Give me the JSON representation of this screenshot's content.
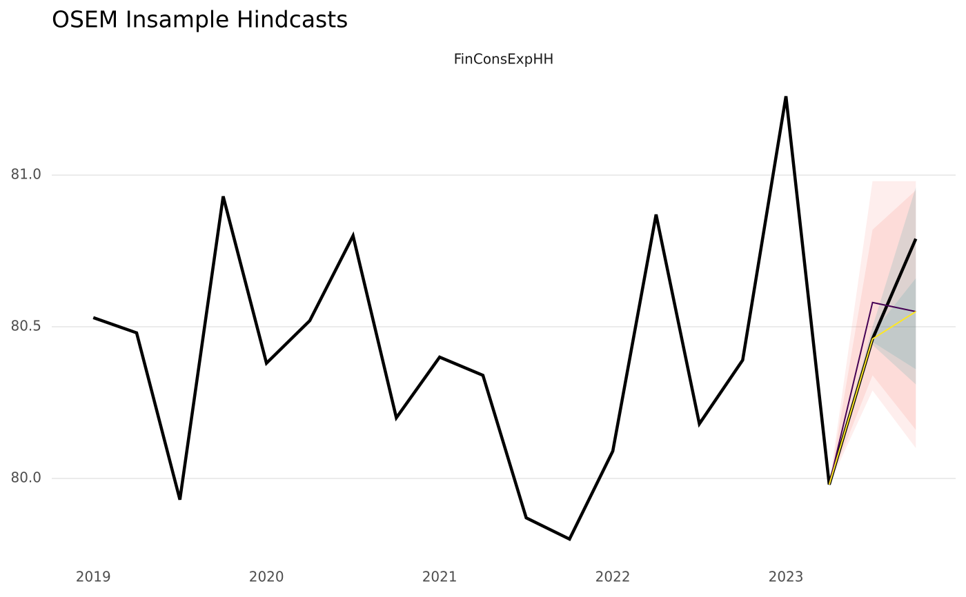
{
  "chart_data": {
    "type": "line",
    "title": "OSEM Insample Hindcasts",
    "subtitle": "FinConsExpHH",
    "x": [
      2019,
      2019.25,
      2019.5,
      2019.75,
      2020,
      2020.25,
      2020.5,
      2020.75,
      2021,
      2021.25,
      2021.5,
      2021.75,
      2022,
      2022.25,
      2022.5,
      2022.75,
      2023,
      2023.25,
      2023.5,
      2023.75
    ],
    "series": [
      {
        "color": "#000000",
        "x": [
          2019,
          2019.25,
          2019.5,
          2019.75,
          2020,
          2020.25,
          2020.5,
          2020.75,
          2021,
          2021.25,
          2021.5,
          2021.75,
          2022,
          2022.25,
          2022.5,
          2022.75,
          2023,
          2023.25,
          2023.5,
          2023.75
        ],
        "values": [
          80.53,
          80.48,
          79.93,
          80.93,
          80.38,
          80.52,
          80.8,
          80.2,
          80.4,
          80.34,
          79.87,
          79.8,
          80.09,
          80.87,
          80.18,
          80.39,
          81.26,
          79.98,
          80.46,
          80.79
        ]
      },
      {
        "color": "#440154",
        "x": [
          2023.25,
          2023.5,
          2023.75
        ],
        "values": [
          79.98,
          80.58,
          80.55
        ]
      },
      {
        "color": "#fde725",
        "x": [
          2023.25,
          2023.5,
          2023.75
        ],
        "values": [
          79.98,
          80.46,
          80.55
        ]
      }
    ],
    "bands": [
      {
        "color": "#f8766d",
        "opacity": 0.12,
        "x": [
          2023.25,
          2023.5,
          2023.75
        ],
        "lower": [
          79.98,
          80.29,
          80.1
        ],
        "upper": [
          79.98,
          80.98,
          80.98
        ]
      },
      {
        "color": "#f8766d",
        "opacity": 0.15,
        "x": [
          2023.25,
          2023.5,
          2023.75
        ],
        "lower": [
          79.98,
          80.34,
          80.16
        ],
        "upper": [
          79.98,
          80.82,
          80.95
        ]
      },
      {
        "color": "#2a9d9f",
        "opacity": 0.15,
        "x": [
          2023.25,
          2023.5,
          2023.75
        ],
        "lower": [
          79.98,
          80.44,
          80.31
        ],
        "upper": [
          79.98,
          80.5,
          80.96
        ]
      },
      {
        "color": "#2a9d9f",
        "opacity": 0.15,
        "x": [
          2023.25,
          2023.5,
          2023.75
        ],
        "lower": [
          79.98,
          80.45,
          80.36
        ],
        "upper": [
          79.98,
          80.48,
          80.66
        ]
      }
    ],
    "xlim": [
      2018.76,
      2023.98
    ],
    "xticks": [
      2019,
      2020,
      2021,
      2022,
      2023
    ],
    "ylim": [
      79.75,
      81.3
    ],
    "yticks": [
      {
        "value": 80,
        "label": "80.0"
      },
      80.5,
      {
        "value": 81,
        "label": "81.0"
      }
    ],
    "grid": true
  }
}
